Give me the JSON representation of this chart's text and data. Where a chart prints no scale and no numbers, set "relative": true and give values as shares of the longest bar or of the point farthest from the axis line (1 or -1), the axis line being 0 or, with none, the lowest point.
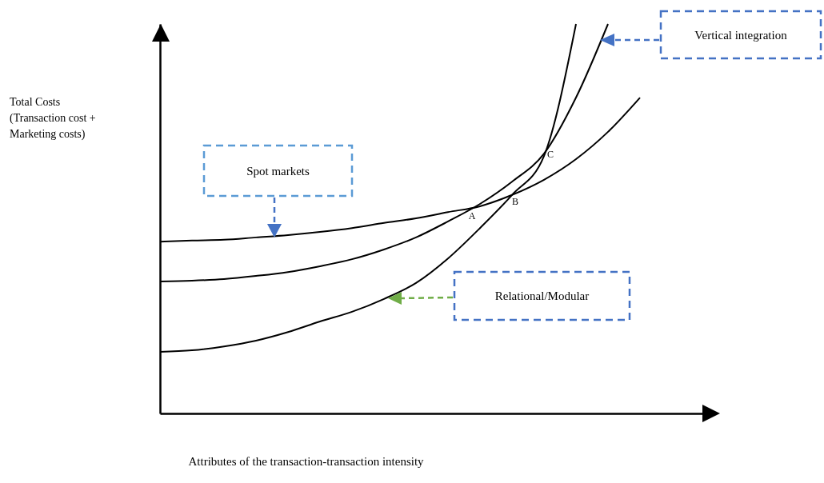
{
  "chart_data": {
    "type": "line",
    "relative": true,
    "xlabel": "Attributes of the transaction-transaction intensity",
    "categories": [
      null,
      null,
      null,
      null,
      null,
      null,
      null,
      null,
      null,
      null,
      null,
      null,
      null,
      null,
      null,
      null,
      null,
      null
    ],
    "series": [
      {
        "color": "#000000",
        "values": [
          0.441,
          0.444,
          0.446,
          0.452,
          0.458,
          0.466,
          0.476,
          0.489,
          0.501,
          0.517,
          0.532,
          0.561,
          0.6,
          0.653,
          0.723,
          0.811,
          null,
          null
        ]
      },
      {
        "color": "#000000",
        "values": [
          0.339,
          0.341,
          0.345,
          0.353,
          0.363,
          0.378,
          0.396,
          0.421,
          0.452,
          0.493,
          0.538,
          0.595,
          0.667,
          0.811,
          1.0,
          null,
          null,
          null
        ]
      },
      {
        "color": "#000000",
        "values": [
          0.158,
          0.162,
          0.172,
          0.187,
          0.209,
          0.236,
          0.261,
          0.294,
          0.335,
          0.398,
          0.476,
          0.561,
          0.661,
          1.0,
          null,
          null,
          null,
          null
        ]
      }
    ],
    "annotations": [
      "Total Costs (Transaction cost + Marketing costs)",
      "Spot markets",
      "Relational/Modular",
      "Vertical integration",
      "A",
      "B",
      "C"
    ]
  }
}
